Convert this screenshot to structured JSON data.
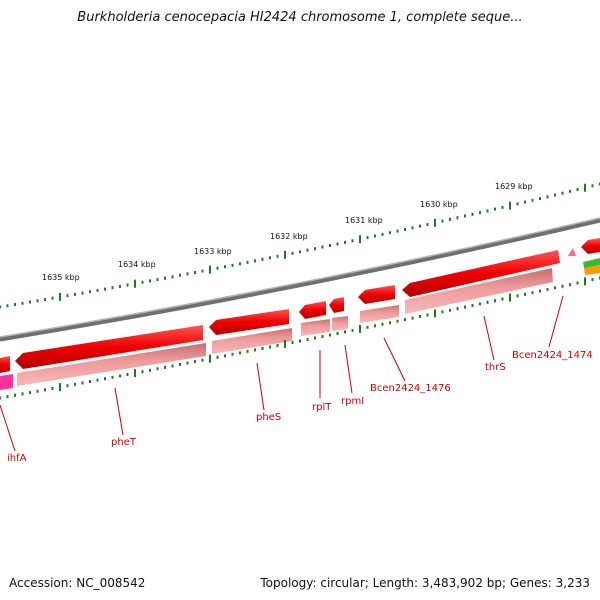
{
  "title": "Burkholderia cenocepacia HI2424 chromosome 1, complete seque...",
  "footer": {
    "accession": "Accession: NC_008542",
    "topology": "Topology: circular; Length: 3,483,902 bp; Genes: 3,233"
  },
  "scale_labels": [
    "1635 kbp",
    "1634 kbp",
    "1633 kbp",
    "1632 kbp",
    "1631 kbp",
    "1630 kbp",
    "1629 kbp"
  ],
  "gene_labels": [
    "ihfA",
    "pheT",
    "pheS",
    "rplT",
    "rpmI",
    "Bcen2424_1476",
    "thrS",
    "Bcen2424_1474"
  ],
  "colors": {
    "gene_forward": "#ee0000",
    "gene_shadow": "#ee8a8a",
    "backbone": "#888888",
    "tick": "#227722",
    "label": "#cc0000",
    "magenta_gene": "#ff3399",
    "green_feature": "#33bb33",
    "orange_feature": "#ff9900"
  }
}
